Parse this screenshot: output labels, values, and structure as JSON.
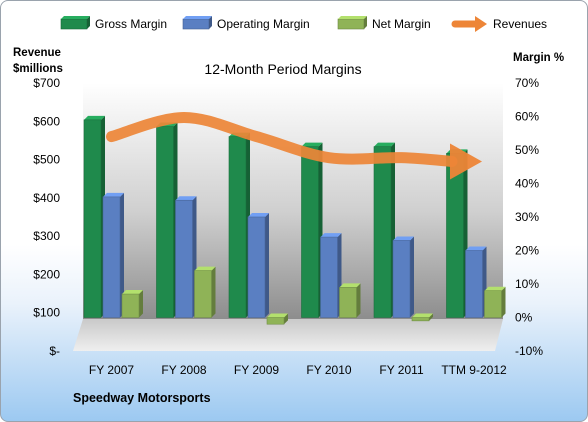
{
  "chart_data": {
    "type": "bar",
    "title": "12-Month Period Margins",
    "caption": "Speedway Motorsports",
    "categories": [
      "FY 2007",
      "FY 2008",
      "FY 2009",
      "FY 2010",
      "FY 2011",
      "TTM 9-2012"
    ],
    "y_left": {
      "label_line1": "Revenue",
      "label_line2": "$millions",
      "range": [
        0,
        700
      ],
      "step": 100,
      "ticks": [
        "$-",
        "$100",
        "$200",
        "$300",
        "$400",
        "$500",
        "$600",
        "$700"
      ]
    },
    "y_right": {
      "label": "Margin %",
      "range": [
        -10,
        70
      ],
      "step": 10,
      "ticks": [
        "-10%",
        "0%",
        "10%",
        "20%",
        "30%",
        "40%",
        "50%",
        "60%",
        "70%"
      ]
    },
    "series": [
      {
        "name": "Gross Margin",
        "axis": "right",
        "kind": "bar",
        "color": "#1f8a4c",
        "values": [
          59,
          57,
          54,
          51,
          51,
          49
        ]
      },
      {
        "name": "Operating Margin",
        "axis": "right",
        "kind": "bar",
        "color": "#5a7fc2",
        "values": [
          36,
          35,
          30,
          24,
          23,
          20
        ]
      },
      {
        "name": "Net Margin",
        "axis": "right",
        "kind": "bar",
        "color": "#8fb357",
        "values": [
          7,
          14,
          -2,
          9,
          -1,
          8
        ]
      },
      {
        "name": "Revenues",
        "axis": "left",
        "kind": "line",
        "color": "#ed8537",
        "values": [
          560,
          610,
          560,
          505,
          505,
          495
        ]
      }
    ],
    "legend_position": "top",
    "grid": false
  }
}
